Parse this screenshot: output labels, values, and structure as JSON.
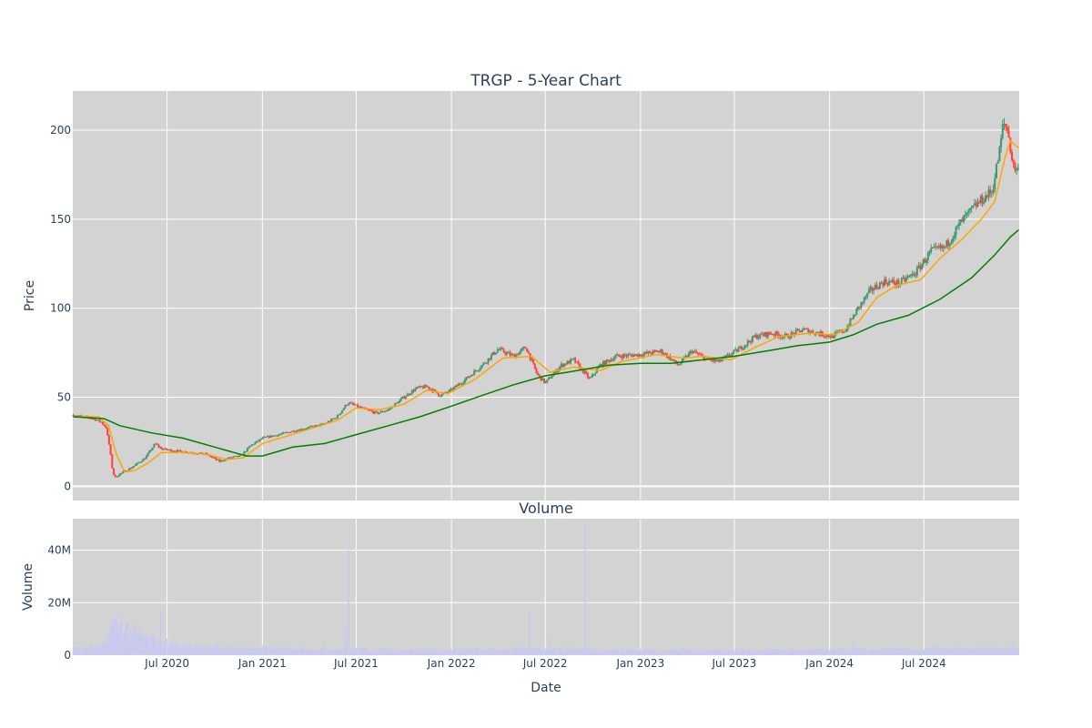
{
  "chart_data": [
    {
      "panel": "price",
      "type": "candlestick",
      "title": "TRGP - 5-Year Chart",
      "ylabel": "Price",
      "ylim": [
        -8,
        222
      ],
      "y_ticks": [
        {
          "value": 0,
          "label": "0"
        },
        {
          "value": 50,
          "label": "50"
        },
        {
          "value": 100,
          "label": "100"
        },
        {
          "value": 150,
          "label": "150"
        },
        {
          "value": 200,
          "label": "200"
        }
      ],
      "x_ticks": [
        "2020-07-01",
        "2021-01-01",
        "2021-07-01",
        "2022-01-01",
        "2022-07-01",
        "2023-01-01",
        "2023-07-01",
        "2024-01-01",
        "2024-07-01"
      ],
      "colors": {
        "up": "#3d9970",
        "down": "#ff4136",
        "ma_short": "#ffa500",
        "ma_long": "#008000",
        "plot_bg": "#d3d3d3",
        "grid": "#ffffff"
      },
      "price_path": [
        [
          "2020-01-02",
          40
        ],
        [
          "2020-01-20",
          39
        ],
        [
          "2020-02-10",
          38
        ],
        [
          "2020-02-25",
          36
        ],
        [
          "2020-03-05",
          33
        ],
        [
          "2020-03-12",
          22
        ],
        [
          "2020-03-18",
          8
        ],
        [
          "2020-03-23",
          5
        ],
        [
          "2020-04-01",
          7
        ],
        [
          "2020-04-15",
          9
        ],
        [
          "2020-05-01",
          12
        ],
        [
          "2020-05-20",
          16
        ],
        [
          "2020-06-08",
          24
        ],
        [
          "2020-06-20",
          21
        ],
        [
          "2020-07-15",
          20
        ],
        [
          "2020-08-15",
          19
        ],
        [
          "2020-09-15",
          18
        ],
        [
          "2020-10-10",
          14
        ],
        [
          "2020-10-30",
          16
        ],
        [
          "2020-11-20",
          17
        ],
        [
          "2020-12-10",
          23
        ],
        [
          "2021-01-01",
          27
        ],
        [
          "2021-02-01",
          29
        ],
        [
          "2021-03-01",
          31
        ],
        [
          "2021-04-01",
          33
        ],
        [
          "2021-05-01",
          35
        ],
        [
          "2021-05-25",
          39
        ],
        [
          "2021-06-15",
          47
        ],
        [
          "2021-07-10",
          44
        ],
        [
          "2021-08-10",
          41
        ],
        [
          "2021-09-01",
          43
        ],
        [
          "2021-10-01",
          50
        ],
        [
          "2021-10-25",
          55
        ],
        [
          "2021-11-15",
          56
        ],
        [
          "2021-12-10",
          51
        ],
        [
          "2022-01-01",
          54
        ],
        [
          "2022-02-01",
          61
        ],
        [
          "2022-03-01",
          68
        ],
        [
          "2022-04-01",
          77
        ],
        [
          "2022-05-01",
          73
        ],
        [
          "2022-05-25",
          78
        ],
        [
          "2022-06-15",
          63
        ],
        [
          "2022-07-01",
          58
        ],
        [
          "2022-08-01",
          68
        ],
        [
          "2022-08-25",
          71
        ],
        [
          "2022-09-25",
          60
        ],
        [
          "2022-10-15",
          68
        ],
        [
          "2022-11-15",
          73
        ],
        [
          "2023-01-01",
          74
        ],
        [
          "2023-02-10",
          76
        ],
        [
          "2023-03-15",
          68
        ],
        [
          "2023-04-10",
          76
        ],
        [
          "2023-05-10",
          71
        ],
        [
          "2023-06-01",
          70
        ],
        [
          "2023-07-10",
          77
        ],
        [
          "2023-08-10",
          84
        ],
        [
          "2023-09-10",
          86
        ],
        [
          "2023-10-10",
          84
        ],
        [
          "2023-11-10",
          88
        ],
        [
          "2023-12-10",
          86
        ],
        [
          "2024-01-05",
          84
        ],
        [
          "2024-02-01",
          88
        ],
        [
          "2024-02-25",
          100
        ],
        [
          "2024-03-20",
          110
        ],
        [
          "2024-04-15",
          115
        ],
        [
          "2024-05-15",
          114
        ],
        [
          "2024-06-15",
          120
        ],
        [
          "2024-07-15",
          132
        ],
        [
          "2024-08-10",
          134
        ],
        [
          "2024-09-10",
          148
        ],
        [
          "2024-10-10",
          158
        ],
        [
          "2024-11-10",
          166
        ],
        [
          "2024-11-25",
          190
        ],
        [
          "2024-12-01",
          204
        ],
        [
          "2024-12-10",
          200
        ],
        [
          "2024-12-20",
          180
        ],
        [
          "2024-12-31",
          177
        ]
      ],
      "ma_short": [
        [
          "2020-01-02",
          39
        ],
        [
          "2020-02-20",
          39
        ],
        [
          "2020-03-10",
          34
        ],
        [
          "2020-03-25",
          18
        ],
        [
          "2020-04-10",
          8
        ],
        [
          "2020-05-01",
          9
        ],
        [
          "2020-05-25",
          13
        ],
        [
          "2020-06-20",
          19
        ],
        [
          "2020-08-01",
          19
        ],
        [
          "2020-09-15",
          18
        ],
        [
          "2020-10-25",
          15
        ],
        [
          "2020-11-25",
          16
        ],
        [
          "2021-01-01",
          24
        ],
        [
          "2021-02-15",
          28
        ],
        [
          "2021-04-01",
          32
        ],
        [
          "2021-05-25",
          37
        ],
        [
          "2021-07-01",
          44
        ],
        [
          "2021-08-15",
          43
        ],
        [
          "2021-10-01",
          46
        ],
        [
          "2021-11-15",
          54
        ],
        [
          "2021-12-25",
          52
        ],
        [
          "2022-02-15",
          60
        ],
        [
          "2022-04-10",
          72
        ],
        [
          "2022-06-05",
          73
        ],
        [
          "2022-07-10",
          64
        ],
        [
          "2022-08-25",
          67
        ],
        [
          "2022-10-15",
          65
        ],
        [
          "2022-11-25",
          70
        ],
        [
          "2023-02-01",
          74
        ],
        [
          "2023-03-25",
          72
        ],
        [
          "2023-05-01",
          73
        ],
        [
          "2023-06-25",
          71
        ],
        [
          "2023-08-10",
          78
        ],
        [
          "2023-09-25",
          84
        ],
        [
          "2023-11-25",
          86
        ],
        [
          "2024-01-10",
          85
        ],
        [
          "2024-02-25",
          92
        ],
        [
          "2024-04-01",
          106
        ],
        [
          "2024-05-10",
          113
        ],
        [
          "2024-06-25",
          116
        ],
        [
          "2024-08-01",
          128
        ],
        [
          "2024-09-10",
          138
        ],
        [
          "2024-10-20",
          150
        ],
        [
          "2024-11-15",
          160
        ],
        [
          "2024-12-05",
          185
        ],
        [
          "2024-12-15",
          194
        ],
        [
          "2024-12-31",
          190
        ]
      ],
      "ma_long": [
        [
          "2020-01-02",
          39
        ],
        [
          "2020-03-01",
          38
        ],
        [
          "2020-04-01",
          34
        ],
        [
          "2020-06-01",
          30
        ],
        [
          "2020-08-01",
          27
        ],
        [
          "2020-10-01",
          22
        ],
        [
          "2020-12-01",
          17
        ],
        [
          "2021-01-01",
          17
        ],
        [
          "2021-03-01",
          22
        ],
        [
          "2021-05-01",
          24
        ],
        [
          "2021-07-01",
          29
        ],
        [
          "2021-09-01",
          34
        ],
        [
          "2021-11-01",
          39
        ],
        [
          "2022-01-01",
          45
        ],
        [
          "2022-03-01",
          51
        ],
        [
          "2022-05-01",
          57
        ],
        [
          "2022-07-01",
          62
        ],
        [
          "2022-09-01",
          65
        ],
        [
          "2022-11-01",
          68
        ],
        [
          "2023-01-01",
          69
        ],
        [
          "2023-03-01",
          69
        ],
        [
          "2023-05-01",
          71
        ],
        [
          "2023-07-01",
          73
        ],
        [
          "2023-09-01",
          76
        ],
        [
          "2023-11-01",
          79
        ],
        [
          "2024-01-01",
          81
        ],
        [
          "2024-02-15",
          85
        ],
        [
          "2024-04-01",
          91
        ],
        [
          "2024-06-01",
          96
        ],
        [
          "2024-08-01",
          105
        ],
        [
          "2024-10-01",
          117
        ],
        [
          "2024-11-15",
          130
        ],
        [
          "2024-12-15",
          140
        ],
        [
          "2024-12-31",
          144
        ]
      ]
    },
    {
      "panel": "volume",
      "type": "bar",
      "title": "Volume",
      "xlabel": "Date",
      "ylabel": "Volume",
      "ylim": [
        0,
        52000000
      ],
      "y_ticks": [
        {
          "value": 0,
          "label": "0"
        },
        {
          "value": 20000000,
          "label": "20M"
        },
        {
          "value": 40000000,
          "label": "40M"
        }
      ],
      "x_ticks": [
        {
          "date": "2020-07-01",
          "label": "Jul 2020"
        },
        {
          "date": "2021-01-01",
          "label": "Jan 2021"
        },
        {
          "date": "2021-07-01",
          "label": "Jul 2021"
        },
        {
          "date": "2022-01-01",
          "label": "Jan 2022"
        },
        {
          "date": "2022-07-01",
          "label": "Jul 2022"
        },
        {
          "date": "2023-01-01",
          "label": "Jan 2023"
        },
        {
          "date": "2023-07-01",
          "label": "Jul 2023"
        },
        {
          "date": "2024-01-01",
          "label": "Jan 2024"
        },
        {
          "date": "2024-07-01",
          "label": "Jul 2024"
        }
      ],
      "bar_color": "#c8c8f0",
      "volume_path": [
        [
          "2020-01-02",
          2500000
        ],
        [
          "2020-03-01",
          3500000
        ],
        [
          "2020-03-20",
          12000000
        ],
        [
          "2020-04-10",
          11000000
        ],
        [
          "2020-05-01",
          8000000
        ],
        [
          "2020-06-01",
          6000000
        ],
        [
          "2020-08-01",
          3500000
        ],
        [
          "2020-11-01",
          3000000
        ],
        [
          "2021-03-01",
          2500000
        ],
        [
          "2021-07-01",
          2200000
        ],
        [
          "2022-01-01",
          2000000
        ],
        [
          "2022-07-01",
          2500000
        ],
        [
          "2023-01-01",
          2000000
        ],
        [
          "2024-01-01",
          2000000
        ],
        [
          "2024-12-31",
          2500000
        ]
      ],
      "volume_spikes": [
        [
          "2020-03-16",
          13000000
        ],
        [
          "2020-06-19",
          16000000
        ],
        [
          "2021-06-16",
          40000000
        ],
        [
          "2021-06-11",
          11000000
        ],
        [
          "2022-06-01",
          17000000
        ],
        [
          "2022-09-16",
          50000000
        ],
        [
          "2022-07-10",
          6000000
        ],
        [
          "2024-02-15",
          4500000
        ],
        [
          "2024-12-20",
          5000000
        ]
      ]
    }
  ]
}
